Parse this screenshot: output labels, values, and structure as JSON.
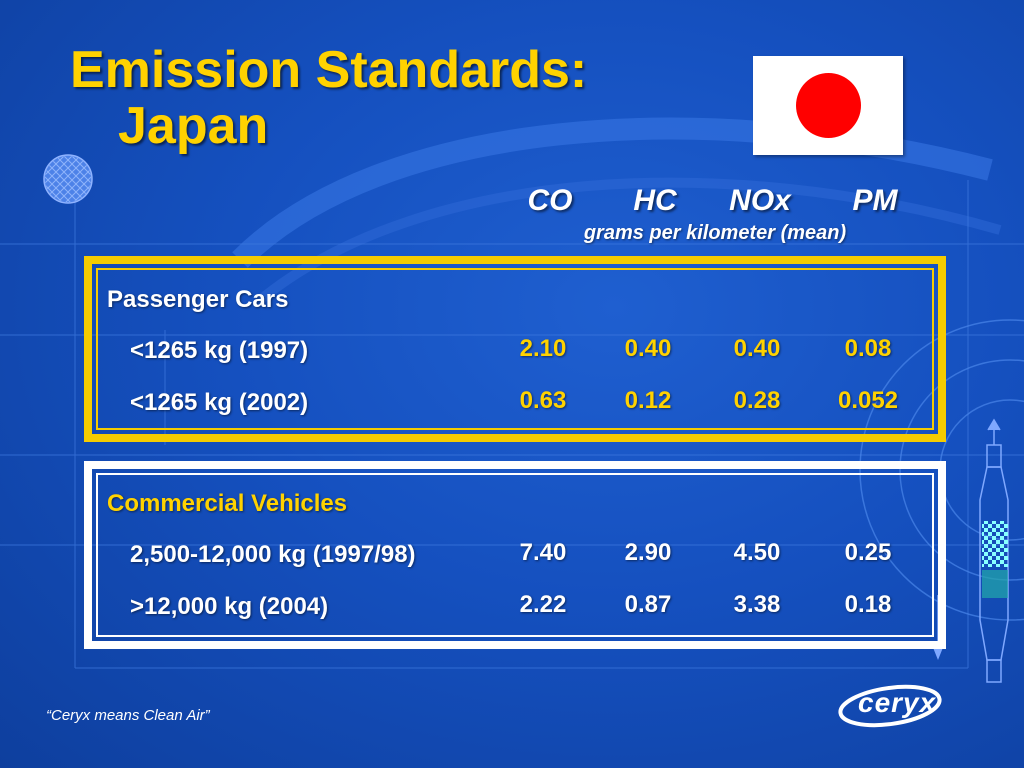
{
  "slide": {
    "title_line1": "Emission Standards:",
    "title_line2": "Japan",
    "tagline": "“Ceryx means Clean Air”",
    "logo_text": "ceryx",
    "colors": {
      "background": "#1550bf",
      "title": "#ffd200",
      "accent_yellow": "#f5cc00",
      "white": "#ffffff",
      "flag_red": "#ff0000"
    }
  },
  "table": {
    "columns": [
      "CO",
      "HC",
      "NOx",
      "PM"
    ],
    "units": "grams per kilometer (mean)",
    "groups": [
      {
        "label": "Passenger Cars",
        "rows": [
          {
            "label": "<1265 kg (1997)",
            "values": [
              "2.10",
              "0.40",
              "0.40",
              "0.08"
            ]
          },
          {
            "label": "<1265 kg (2002)",
            "values": [
              "0.63",
              "0.12",
              "0.28",
              "0.052"
            ]
          }
        ]
      },
      {
        "label": "Commercial Vehicles",
        "rows": [
          {
            "label": "2,500-12,000 kg (1997/98)",
            "values": [
              "7.40",
              "2.90",
              "4.50",
              "0.25"
            ]
          },
          {
            "label": ">12,000 kg (2004)",
            "values": [
              "2.22",
              "0.87",
              "3.38",
              "0.18"
            ]
          }
        ]
      }
    ]
  },
  "icons": {
    "flag": "japan-flag-icon",
    "decoration": "mesh-ball-icon",
    "converter": "catalytic-converter-icon"
  }
}
